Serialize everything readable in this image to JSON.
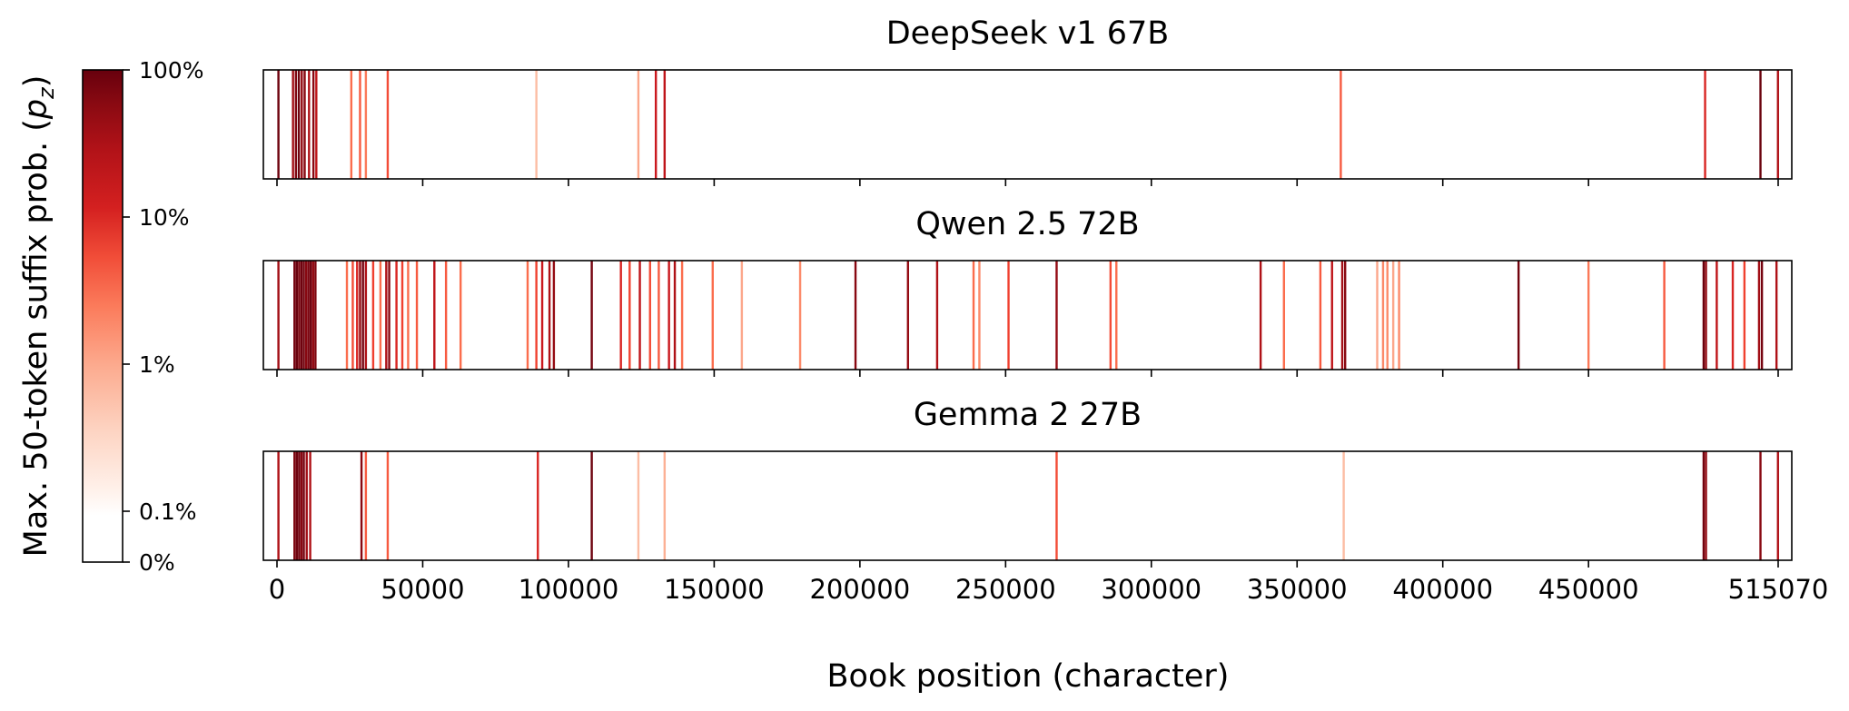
{
  "chart_data": {
    "type": "heatmap",
    "x_axis": {
      "label": "Book position (character)",
      "range": [
        0,
        515070
      ],
      "ticks": [
        0,
        50000,
        100000,
        150000,
        200000,
        250000,
        300000,
        350000,
        400000,
        450000,
        515070
      ],
      "tick_labels": [
        "0",
        "50000",
        "100000",
        "150000",
        "200000",
        "250000",
        "300000",
        "350000",
        "400000",
        "450000",
        "515070"
      ]
    },
    "colorbar": {
      "label": "Max. 50-token suffix prob. (p_z)",
      "colormap": "Reds",
      "scale": "log",
      "ticks": [
        0,
        0.001,
        0.01,
        0.1,
        1
      ],
      "tick_labels": [
        "0%",
        "0.1%",
        "1%",
        "10%",
        "100%"
      ]
    },
    "panels": [
      {
        "title": "DeepSeek v1 67B",
        "marks": [
          [
            500,
            0.9
          ],
          [
            5500,
            0.4
          ],
          [
            6500,
            0.7
          ],
          [
            7500,
            0.9
          ],
          [
            8500,
            0.5
          ],
          [
            9500,
            0.6
          ],
          [
            11000,
            0.3
          ],
          [
            12500,
            0.6
          ],
          [
            13500,
            0.2
          ],
          [
            25500,
            0.02
          ],
          [
            28500,
            0.03
          ],
          [
            30500,
            0.015
          ],
          [
            38000,
            0.04
          ],
          [
            89000,
            0.003
          ],
          [
            124000,
            0.005
          ],
          [
            130000,
            0.15
          ],
          [
            133000,
            0.2
          ],
          [
            365000,
            0.03
          ],
          [
            490000,
            0.1
          ],
          [
            509000,
            0.95
          ],
          [
            515000,
            0.3
          ]
        ]
      },
      {
        "title": "Qwen 2.5 72B",
        "marks": [
          [
            500,
            0.4
          ],
          [
            6000,
            0.8
          ],
          [
            6800,
            0.95
          ],
          [
            7600,
            0.7
          ],
          [
            8400,
            0.9
          ],
          [
            9200,
            0.85
          ],
          [
            10000,
            0.6
          ],
          [
            10800,
            0.75
          ],
          [
            11600,
            0.9
          ],
          [
            12400,
            0.5
          ],
          [
            13200,
            0.7
          ],
          [
            24000,
            0.02
          ],
          [
            26000,
            0.04
          ],
          [
            27500,
            0.1
          ],
          [
            28500,
            0.5
          ],
          [
            29500,
            0.8
          ],
          [
            30500,
            0.3
          ],
          [
            33000,
            0.05
          ],
          [
            35500,
            0.02
          ],
          [
            37500,
            0.3
          ],
          [
            38500,
            0.6
          ],
          [
            41000,
            0.1
          ],
          [
            43000,
            0.05
          ],
          [
            45000,
            0.02
          ],
          [
            48000,
            0.03
          ],
          [
            54000,
            0.2
          ],
          [
            58000,
            0.03
          ],
          [
            63000,
            0.02
          ],
          [
            86000,
            0.02
          ],
          [
            89000,
            0.05
          ],
          [
            91000,
            0.15
          ],
          [
            93500,
            0.3
          ],
          [
            95000,
            0.5
          ],
          [
            108000,
            0.8
          ],
          [
            118000,
            0.1
          ],
          [
            121000,
            0.05
          ],
          [
            124500,
            0.2
          ],
          [
            128000,
            0.04
          ],
          [
            131000,
            0.03
          ],
          [
            134500,
            0.15
          ],
          [
            136500,
            0.3
          ],
          [
            139000,
            0.02
          ],
          [
            149500,
            0.02
          ],
          [
            159500,
            0.005
          ],
          [
            179500,
            0.01
          ],
          [
            198500,
            0.6
          ],
          [
            216500,
            0.5
          ],
          [
            226500,
            0.3
          ],
          [
            239000,
            0.02
          ],
          [
            241000,
            0.01
          ],
          [
            251000,
            0.05
          ],
          [
            267500,
            0.5
          ],
          [
            286000,
            0.04
          ],
          [
            288000,
            0.02
          ],
          [
            337500,
            0.3
          ],
          [
            345500,
            0.02
          ],
          [
            358000,
            0.03
          ],
          [
            362000,
            0.2
          ],
          [
            365500,
            0.4
          ],
          [
            366500,
            0.6
          ],
          [
            377500,
            0.005
          ],
          [
            379500,
            0.01
          ],
          [
            381000,
            0.01
          ],
          [
            383000,
            0.005
          ],
          [
            385000,
            0.01
          ],
          [
            426000,
            0.85
          ],
          [
            450000,
            0.015
          ],
          [
            476000,
            0.03
          ],
          [
            489500,
            0.95
          ],
          [
            490300,
            0.5
          ],
          [
            494000,
            0.2
          ],
          [
            499500,
            0.1
          ],
          [
            503500,
            0.05
          ],
          [
            508500,
            0.4
          ],
          [
            509500,
            0.8
          ],
          [
            514500,
            0.3
          ]
        ]
      },
      {
        "title": "Gemma 2 27B",
        "marks": [
          [
            500,
            0.3
          ],
          [
            6000,
            0.7
          ],
          [
            6800,
            0.9
          ],
          [
            7600,
            0.85
          ],
          [
            8400,
            0.6
          ],
          [
            9200,
            0.8
          ],
          [
            10200,
            0.4
          ],
          [
            11400,
            0.3
          ],
          [
            29000,
            0.6
          ],
          [
            30500,
            0.03
          ],
          [
            38000,
            0.03
          ],
          [
            89500,
            0.1
          ],
          [
            108000,
            0.9
          ],
          [
            124000,
            0.003
          ],
          [
            133000,
            0.004
          ],
          [
            267500,
            0.04
          ],
          [
            366000,
            0.003
          ],
          [
            489500,
            0.85
          ],
          [
            490300,
            0.5
          ],
          [
            509000,
            0.6
          ],
          [
            515000,
            0.3
          ]
        ]
      }
    ]
  }
}
